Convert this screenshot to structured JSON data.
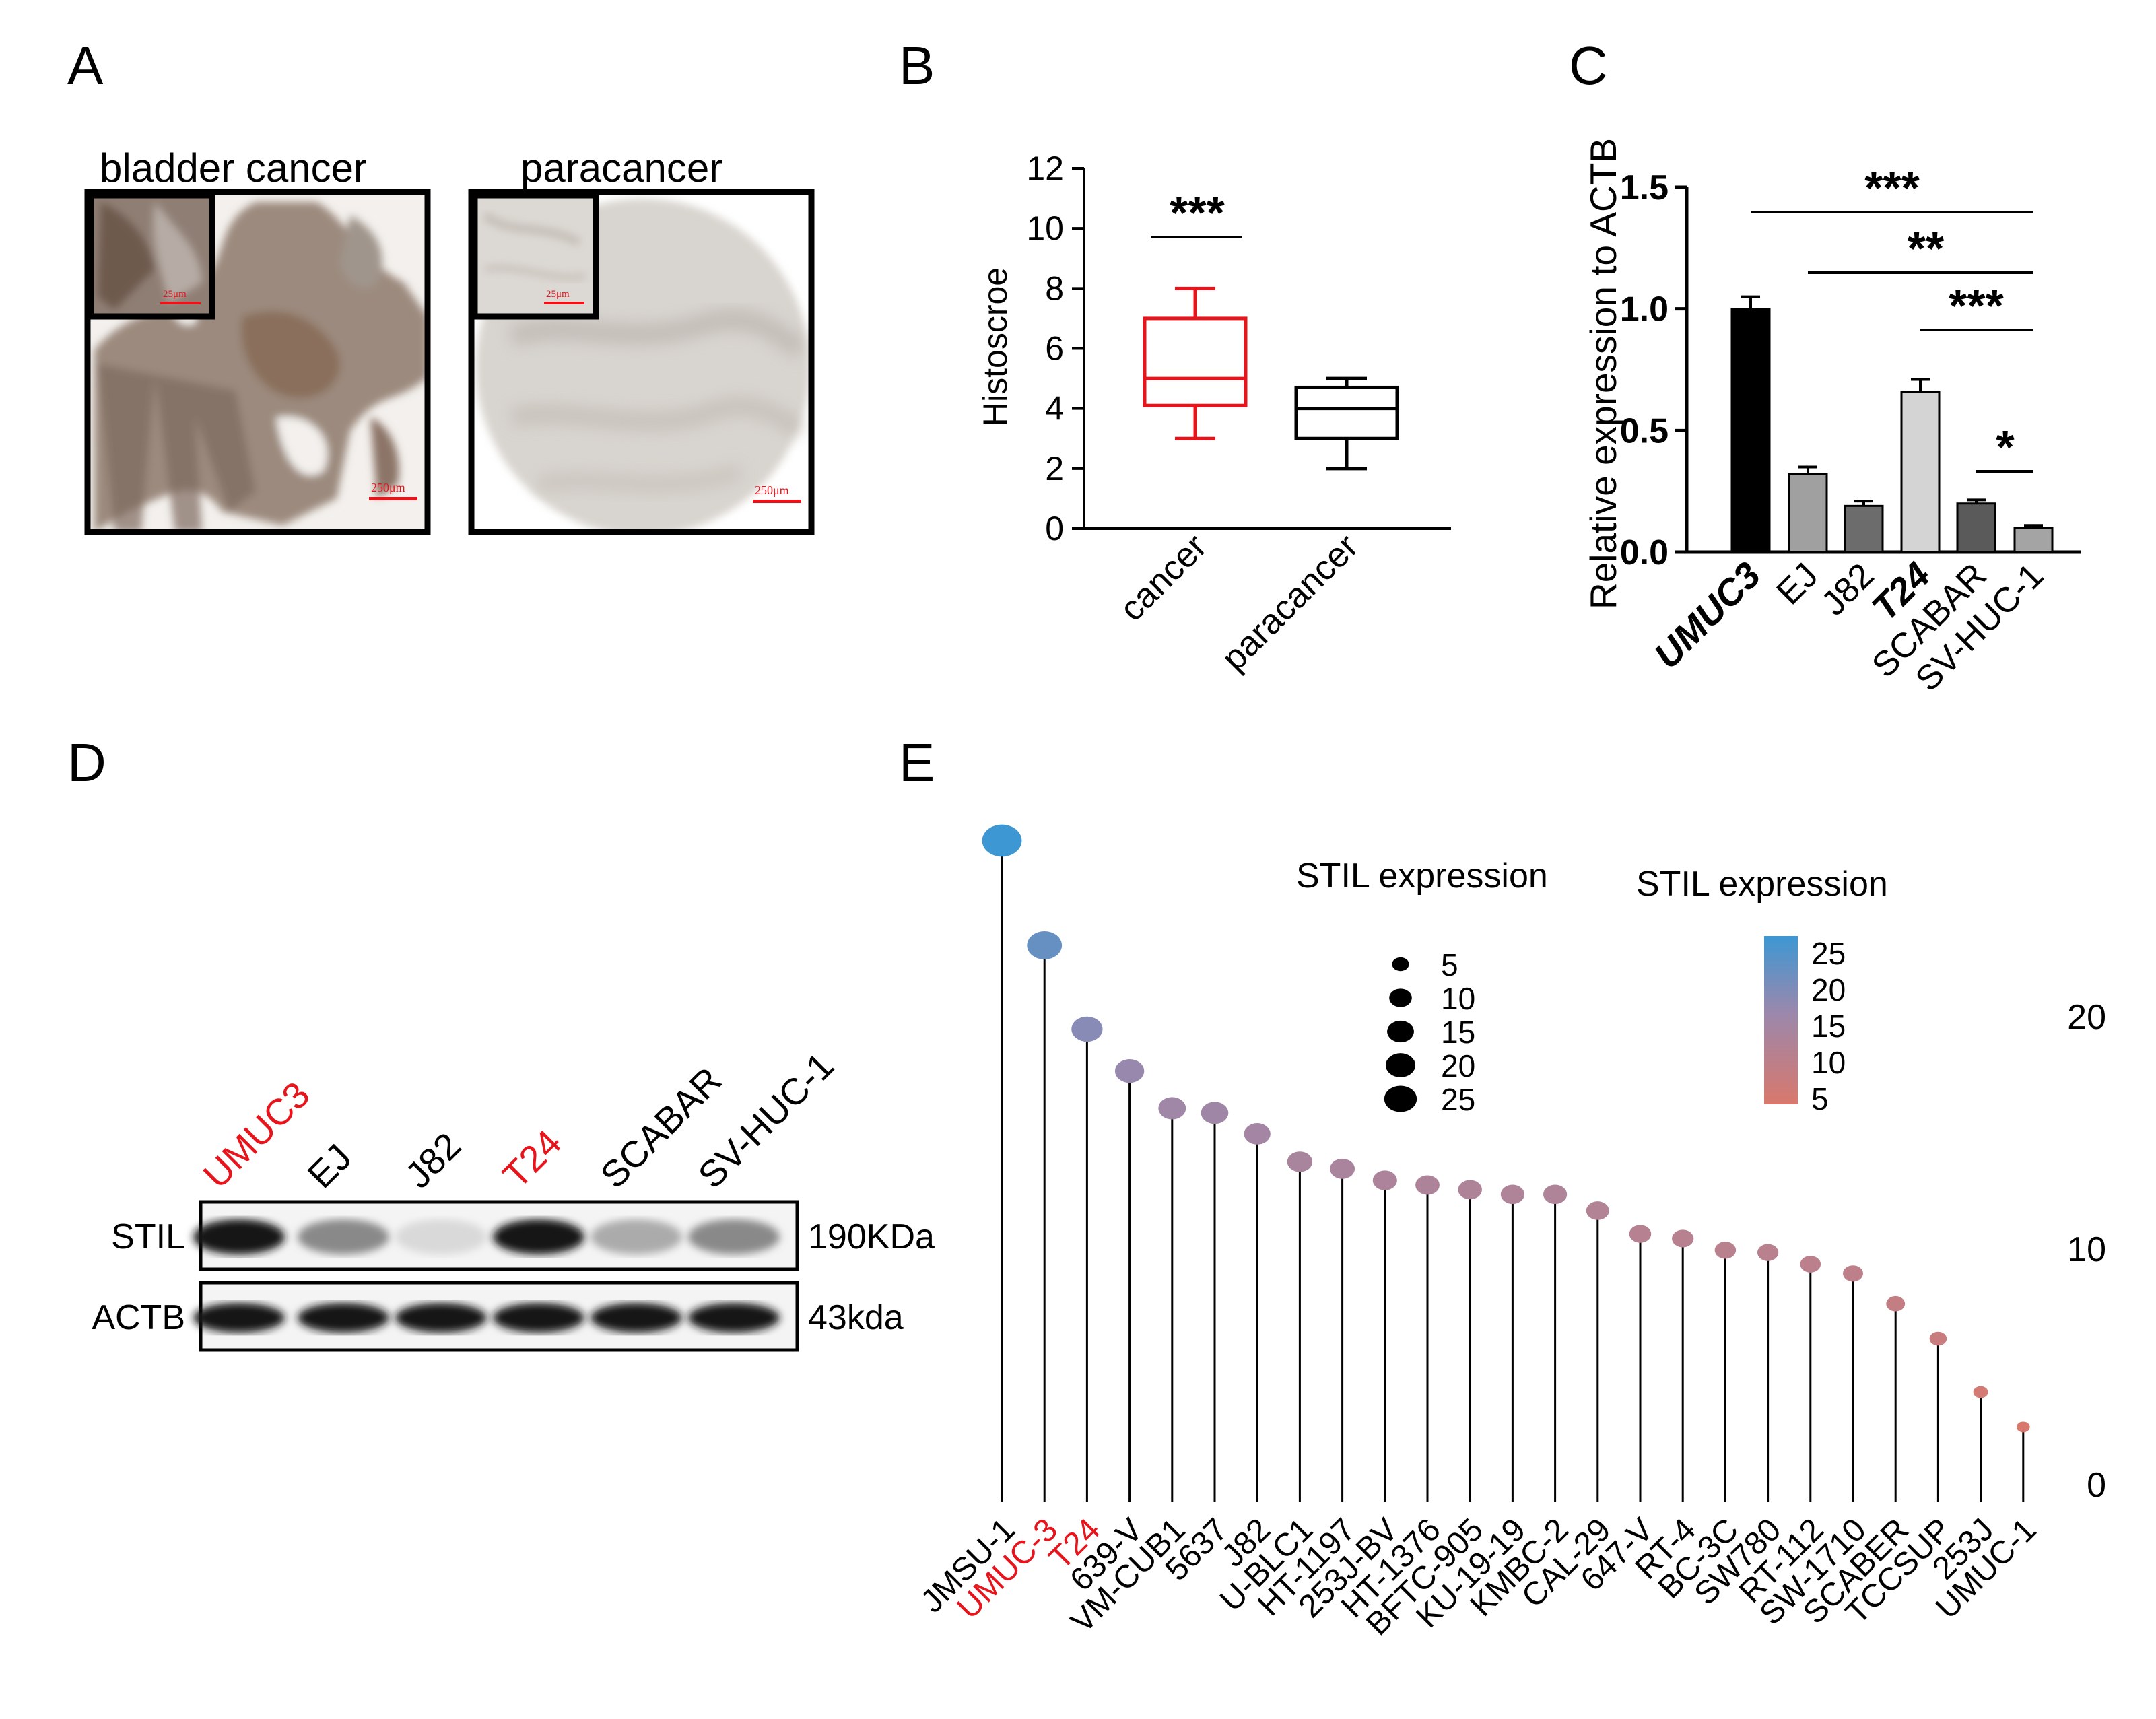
{
  "panel_labels": {
    "a": "A",
    "b": "B",
    "c": "C",
    "d": "D",
    "e": "E"
  },
  "panel_a": {
    "left_title": "bladder cancer",
    "right_title": "paracancer",
    "scale_large": "250μm",
    "scale_inset": "25μm"
  },
  "colors": {
    "red": "#e8141b",
    "blue_high": "#3d97d3",
    "purple_mid": "#9a88ad",
    "red_low": "#d9786c",
    "tissue_brown": "#8a7364",
    "tissue_grey": "#d8d4cf"
  },
  "western_blot": {
    "lanes": [
      "UMUC3",
      "EJ",
      "J82",
      "T24",
      "SCABAR",
      "SV-HUC-1"
    ],
    "highlighted_lanes": [
      "UMUC3",
      "T24"
    ],
    "rows": [
      {
        "label": "STIL",
        "size": "190KDa",
        "intensity": [
          0.95,
          0.45,
          0.1,
          0.95,
          0.3,
          0.45
        ]
      },
      {
        "label": "ACTB",
        "size": "43kda",
        "intensity": [
          0.95,
          0.95,
          0.95,
          0.95,
          0.95,
          0.95
        ]
      }
    ]
  },
  "chart_data": [
    {
      "panel": "B",
      "type": "box",
      "ylabel": "Histoscroe",
      "ylim": [
        0,
        12
      ],
      "yticks": [
        "0",
        "2",
        "4",
        "6",
        "8",
        "10",
        "12"
      ],
      "categories": [
        "cancer",
        "paracancer"
      ],
      "series": [
        {
          "name": "cancer",
          "min": 3,
          "q1": 4.1,
          "median": 5,
          "q3": 7,
          "max": 8,
          "color": "#e8141b"
        },
        {
          "name": "paracancer",
          "min": 2,
          "q1": 3,
          "median": 4,
          "q3": 4.7,
          "max": 5,
          "color": "#000000"
        }
      ],
      "significance": [
        {
          "between": [
            "cancer",
            "cancer"
          ],
          "label": "***"
        }
      ]
    },
    {
      "panel": "C",
      "type": "bar",
      "ylabel": "Relative expression to ACTB",
      "ylim": [
        0,
        1.5
      ],
      "yticks": [
        "0.0",
        "0.5",
        "1.0",
        "1.5"
      ],
      "categories": [
        "UMUC3",
        "EJ",
        "J82",
        "T24",
        "SCABAR",
        "SV-HUC-1"
      ],
      "bold_categories": [
        "UMUC3",
        "T24"
      ],
      "values": [
        1.0,
        0.32,
        0.19,
        0.66,
        0.2,
        0.1
      ],
      "errors": [
        0.05,
        0.03,
        0.02,
        0.05,
        0.015,
        0.01
      ],
      "bar_colors": [
        "#000000",
        "#a0a0a0",
        "#6c6c6c",
        "#d4d4d4",
        "#5a5a5a",
        "#a4a4a4"
      ],
      "significance": [
        {
          "from": "UMUC3",
          "to": "SV-HUC-1",
          "label": "***"
        },
        {
          "from": "EJ",
          "to": "SV-HUC-1",
          "label": "**"
        },
        {
          "from": "T24",
          "to": "SV-HUC-1",
          "label": "***"
        },
        {
          "from": "SCABAR",
          "to": "SV-HUC-1",
          "label": "*"
        }
      ]
    },
    {
      "panel": "E",
      "type": "lollipop",
      "yticks": [
        "0",
        "10",
        "20"
      ],
      "ylim": [
        0,
        28.5
      ],
      "categories": [
        "JMSU-1",
        "UMUC-3",
        "T24",
        "639-V",
        "VM-CUB1",
        "5637",
        "J82",
        "U-BLC1",
        "HT-1197",
        "253J-BV",
        "HT-1376",
        "BFTC-905",
        "KU-19-19",
        "KMBC-2",
        "CAL-29",
        "647-V",
        "RT-4",
        "BC-3C",
        "SW780",
        "RT-112",
        "SW-1710",
        "SCABER",
        "TCCSUP",
        "253J",
        "UMUC-1"
      ],
      "highlighted": [
        "UMUC-3",
        "T24"
      ],
      "values": [
        28.4,
        23.9,
        20.3,
        18.5,
        16.9,
        16.7,
        15.8,
        14.6,
        14.3,
        13.8,
        13.6,
        13.4,
        13.2,
        13.2,
        12.5,
        11.5,
        11.3,
        10.8,
        10.7,
        10.2,
        9.8,
        8.5,
        7.0,
        4.7,
        3.2
      ],
      "size_legend": {
        "title": "STIL expression",
        "labels": [
          "5",
          "10",
          "15",
          "20",
          "25"
        ]
      },
      "color_legend": {
        "title": "STIL expression",
        "labels": [
          "25",
          "20",
          "15",
          "10",
          "5"
        ]
      }
    }
  ]
}
